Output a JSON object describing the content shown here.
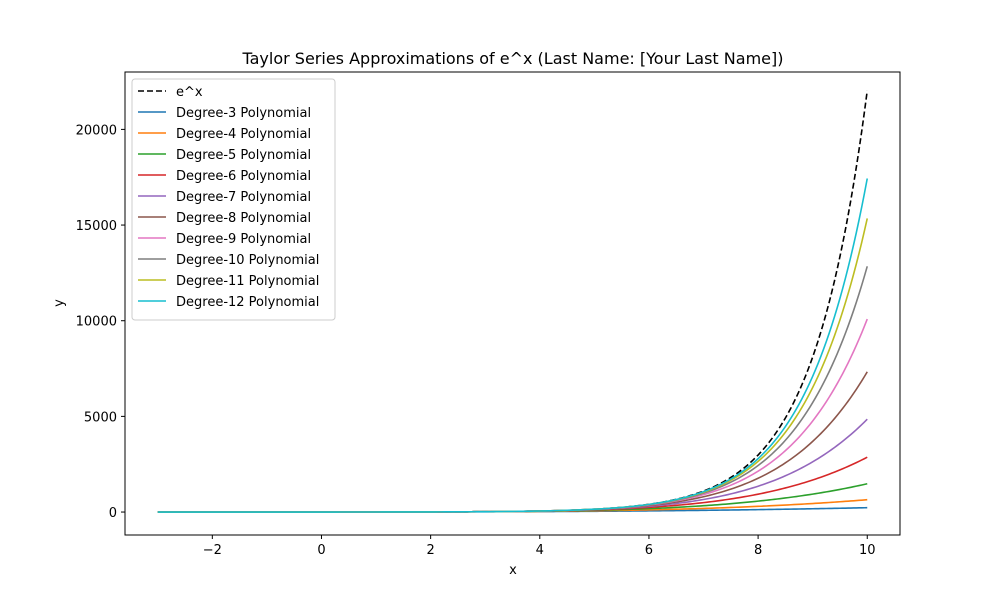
{
  "chart_data": {
    "type": "line",
    "title": "Taylor Series Approximations of e^x (Last Name: [Your Last Name])",
    "xlabel": "x",
    "ylabel": "y",
    "xlim": [
      -3.6,
      10.6
    ],
    "ylim": [
      -1200,
      23000
    ],
    "x_ticks": [
      -2,
      0,
      2,
      4,
      6,
      8,
      10
    ],
    "y_ticks": [
      0,
      5000,
      10000,
      15000,
      20000
    ],
    "x_tick_labels": [
      "−2",
      "0",
      "2",
      "4",
      "6",
      "8",
      "10"
    ],
    "y_tick_labels": [
      "0",
      "5000",
      "10000",
      "15000",
      "20000"
    ],
    "x_range": [
      -3,
      10
    ],
    "legend_position": "upper-left",
    "grid": false,
    "series": [
      {
        "name": "e^x",
        "kind": "exp",
        "color": "#000000",
        "dashed": true
      },
      {
        "name": "Degree-3 Polynomial",
        "kind": "taylor",
        "degree": 3,
        "color": "#1f77b4"
      },
      {
        "name": "Degree-4 Polynomial",
        "kind": "taylor",
        "degree": 4,
        "color": "#ff7f0e"
      },
      {
        "name": "Degree-5 Polynomial",
        "kind": "taylor",
        "degree": 5,
        "color": "#2ca02c"
      },
      {
        "name": "Degree-6 Polynomial",
        "kind": "taylor",
        "degree": 6,
        "color": "#d62728"
      },
      {
        "name": "Degree-7 Polynomial",
        "kind": "taylor",
        "degree": 7,
        "color": "#9467bd"
      },
      {
        "name": "Degree-8 Polynomial",
        "kind": "taylor",
        "degree": 8,
        "color": "#8c564b"
      },
      {
        "name": "Degree-9 Polynomial",
        "kind": "taylor",
        "degree": 9,
        "color": "#e377c2"
      },
      {
        "name": "Degree-10 Polynomial",
        "kind": "taylor",
        "degree": 10,
        "color": "#7f7f7f"
      },
      {
        "name": "Degree-11 Polynomial",
        "kind": "taylor",
        "degree": 11,
        "color": "#bcbd22"
      },
      {
        "name": "Degree-12 Polynomial",
        "kind": "taylor",
        "degree": 12,
        "color": "#17becf"
      }
    ]
  }
}
